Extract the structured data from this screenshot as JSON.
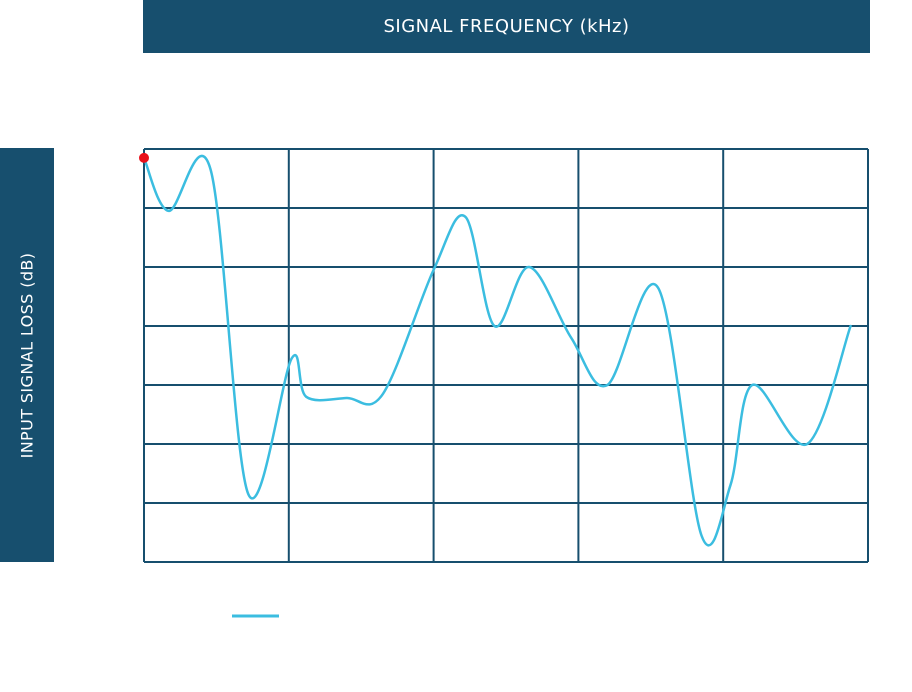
{
  "chart_data": {
    "type": "line",
    "title": "SIGNAL FREQUENCY (kHz)",
    "xlabel": "",
    "ylabel": "INPUT SIGNAL LOSS (dB)",
    "grid": true,
    "grid_columns": 5,
    "grid_rows": 7,
    "xlim": [
      0,
      5
    ],
    "ylim": [
      0,
      7
    ],
    "legend_placement": "bottom-left",
    "colors": {
      "frame": "#174f6e",
      "series": "#3bbde0",
      "start_marker": "#e8101a",
      "banner_text": "#ffffff"
    },
    "series": [
      {
        "values": [
          {
            "x": 0.0,
            "y": 6.85
          },
          {
            "x": 0.17,
            "y": 5.95
          },
          {
            "x": 0.46,
            "y": 6.65
          },
          {
            "x": 0.72,
            "y": 1.15
          },
          {
            "x": 1.02,
            "y": 3.45
          },
          {
            "x": 1.12,
            "y": 2.8
          },
          {
            "x": 1.4,
            "y": 2.78
          },
          {
            "x": 1.65,
            "y": 2.85
          },
          {
            "x": 2.0,
            "y": 4.95
          },
          {
            "x": 2.22,
            "y": 5.85
          },
          {
            "x": 2.42,
            "y": 4.0
          },
          {
            "x": 2.66,
            "y": 5.0
          },
          {
            "x": 2.95,
            "y": 3.8
          },
          {
            "x": 3.2,
            "y": 3.0
          },
          {
            "x": 3.55,
            "y": 4.65
          },
          {
            "x": 3.85,
            "y": 0.45
          },
          {
            "x": 4.05,
            "y": 1.3
          },
          {
            "x": 4.2,
            "y": 3.0
          },
          {
            "x": 4.58,
            "y": 2.0
          },
          {
            "x": 4.88,
            "y": 4.0
          }
        ]
      }
    ]
  }
}
